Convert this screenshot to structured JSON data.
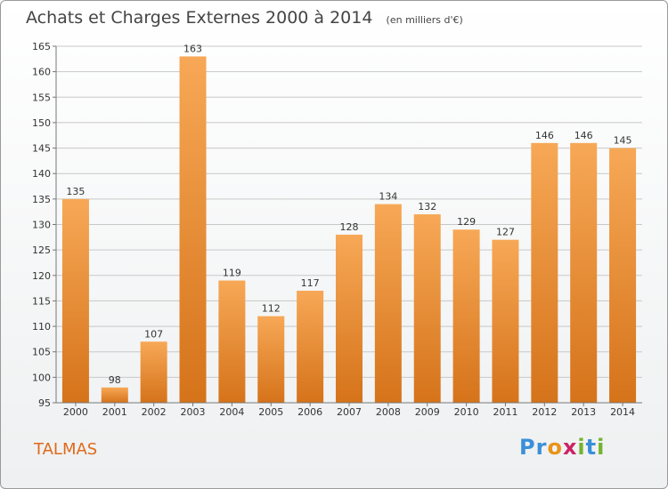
{
  "header": {
    "title": "Achats et Charges Externes 2000 à 2014",
    "subtitle": "(en milliers d'€)"
  },
  "footer": {
    "commune": "TALMAS",
    "logo_letters": [
      "P",
      "r",
      "o",
      "x",
      "i",
      "t",
      "i"
    ],
    "logo_colors": [
      "#3a8fd8",
      "#3a8fd8",
      "#e8931a",
      "#cc2266",
      "#74b22c",
      "#3a8fd8",
      "#74b22c"
    ]
  },
  "chart_data": {
    "type": "bar",
    "categories": [
      "2000",
      "2001",
      "2002",
      "2003",
      "2004",
      "2005",
      "2006",
      "2007",
      "2008",
      "2009",
      "2010",
      "2011",
      "2012",
      "2013",
      "2014"
    ],
    "values": [
      135,
      98,
      107,
      163,
      119,
      112,
      117,
      128,
      134,
      132,
      129,
      127,
      146,
      146,
      145
    ],
    "data_labels": [
      "135",
      "98",
      "107",
      "163",
      "119",
      "112",
      "117",
      "128",
      "134",
      "132",
      "129",
      "127",
      "146",
      "146",
      "145"
    ],
    "ylim": [
      95,
      165
    ],
    "yticks": [
      95,
      100,
      105,
      110,
      115,
      120,
      125,
      130,
      135,
      140,
      145,
      150,
      155,
      160,
      165
    ],
    "ytick_labels": [
      "95",
      "100",
      "105",
      "110",
      "115",
      "120",
      "125",
      "130",
      "135",
      "140",
      "145",
      "150",
      "155",
      "160",
      "165"
    ],
    "grid": true,
    "bar_color_top": "#f7a856",
    "bar_color_bottom": "#d5731a"
  }
}
